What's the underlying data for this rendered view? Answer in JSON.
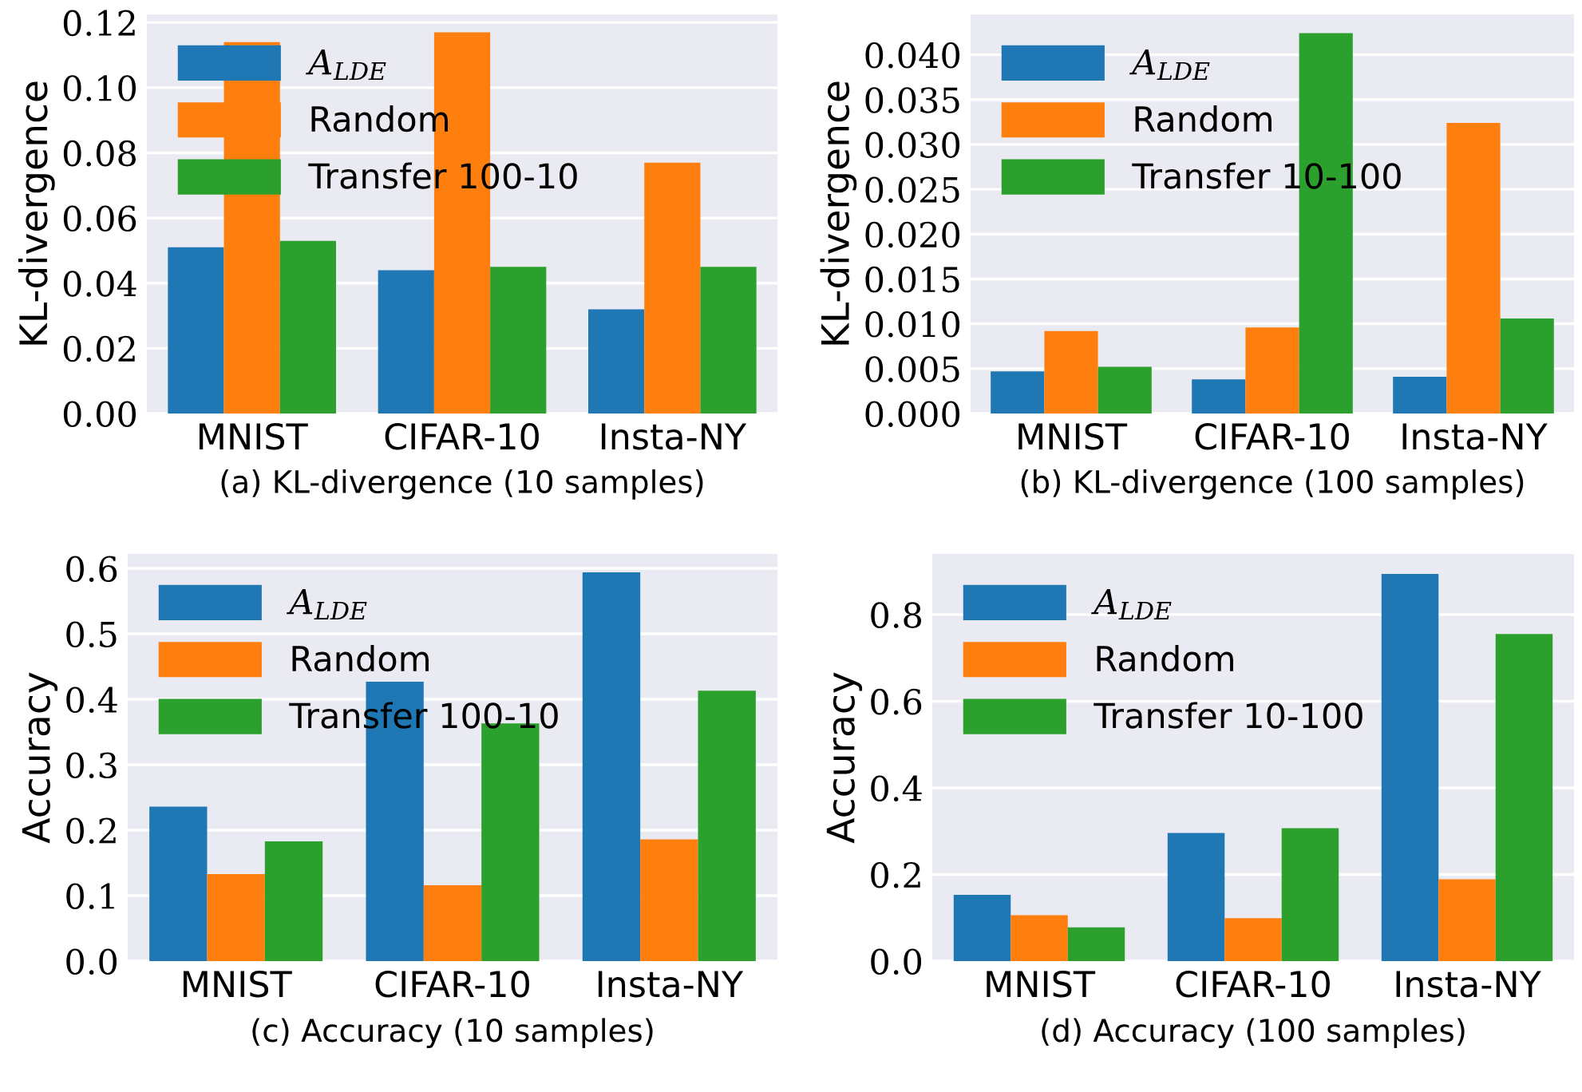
{
  "chart_data": [
    {
      "type": "bar",
      "title": "(a) KL-divergence (10 samples)",
      "ylabel": "KL-divergence",
      "categories": [
        "MNIST",
        "CIFAR-10",
        "Insta-NY"
      ],
      "series": [
        {
          "name": "A$_{LDE}$",
          "color": "#1f77b4",
          "values": [
            0.051,
            0.044,
            0.032
          ]
        },
        {
          "name": "Random",
          "color": "#ff7f0e",
          "values": [
            0.114,
            0.117,
            0.077
          ]
        },
        {
          "name": "Transfer 100-10",
          "color": "#2ca02c",
          "values": [
            0.053,
            0.045,
            0.045
          ]
        }
      ],
      "ylim": [
        0,
        0.1225
      ],
      "yticks": [
        {
          "value": 0,
          "label": "0.00"
        },
        {
          "value": 0.02,
          "label": "0.02"
        },
        {
          "value": 0.04,
          "label": "0.04"
        },
        {
          "value": 0.06,
          "label": "0.06"
        },
        {
          "value": 0.08,
          "label": "0.08"
        },
        {
          "value": 0.1,
          "label": "0.10"
        },
        {
          "value": 0.12,
          "label": "0.12"
        }
      ],
      "grid": "y",
      "legend": "top left"
    },
    {
      "type": "bar",
      "title": "(b) KL-divergence (100 samples)",
      "ylabel": "KL-divergence",
      "categories": [
        "MNIST",
        "CIFAR-10",
        "Insta-NY"
      ],
      "series": [
        {
          "name": "A$_{LDE}$",
          "color": "#1f77b4",
          "values": [
            0.0047,
            0.0038,
            0.0041
          ]
        },
        {
          "name": "Random",
          "color": "#ff7f0e",
          "values": [
            0.0092,
            0.0096,
            0.0324
          ]
        },
        {
          "name": "Transfer 10-100",
          "color": "#2ca02c",
          "values": [
            0.0052,
            0.0424,
            0.0106
          ]
        }
      ],
      "ylim": [
        0,
        0.0445
      ],
      "yticks": [
        {
          "value": 0,
          "label": "0.000"
        },
        {
          "value": 0.005,
          "label": "0.005"
        },
        {
          "value": 0.01,
          "label": "0.010"
        },
        {
          "value": 0.015,
          "label": "0.015"
        },
        {
          "value": 0.02,
          "label": "0.020"
        },
        {
          "value": 0.025,
          "label": "0.025"
        },
        {
          "value": 0.03,
          "label": "0.030"
        },
        {
          "value": 0.035,
          "label": "0.035"
        },
        {
          "value": 0.04,
          "label": "0.040"
        }
      ],
      "grid": "y",
      "legend": "top left"
    },
    {
      "type": "bar",
      "title": "(c) Accuracy (10 samples)",
      "ylabel": "Accuracy",
      "categories": [
        "MNIST",
        "CIFAR-10",
        "Insta-NY"
      ],
      "series": [
        {
          "name": "A$_{LDE}$",
          "color": "#1f77b4",
          "values": [
            0.236,
            0.427,
            0.594
          ]
        },
        {
          "name": "Random",
          "color": "#ff7f0e",
          "values": [
            0.133,
            0.116,
            0.186
          ]
        },
        {
          "name": "Transfer 100-10",
          "color": "#2ca02c",
          "values": [
            0.183,
            0.363,
            0.413
          ]
        }
      ],
      "ylim": [
        0,
        0.622
      ],
      "yticks": [
        {
          "value": 0,
          "label": "0.0"
        },
        0.1,
        0.2,
        0.3,
        0.4,
        0.5,
        0.6
      ],
      "grid": "y",
      "legend": "top left"
    },
    {
      "type": "bar",
      "title": "(d) Accuracy (100 samples)",
      "ylabel": "Accuracy",
      "categories": [
        "MNIST",
        "CIFAR-10",
        "Insta-NY"
      ],
      "series": [
        {
          "name": "A$_{LDE}$",
          "color": "#1f77b4",
          "values": [
            0.153,
            0.296,
            0.894
          ]
        },
        {
          "name": "Random",
          "color": "#ff7f0e",
          "values": [
            0.106,
            0.099,
            0.189
          ]
        },
        {
          "name": "Transfer 10-100",
          "color": "#2ca02c",
          "values": [
            0.078,
            0.307,
            0.755
          ]
        }
      ],
      "ylim": [
        0,
        0.94
      ],
      "yticks": [
        {
          "value": 0,
          "label": "0.0"
        },
        0.2,
        0.4,
        0.6,
        0.8
      ],
      "grid": "y",
      "legend": "top left"
    }
  ]
}
